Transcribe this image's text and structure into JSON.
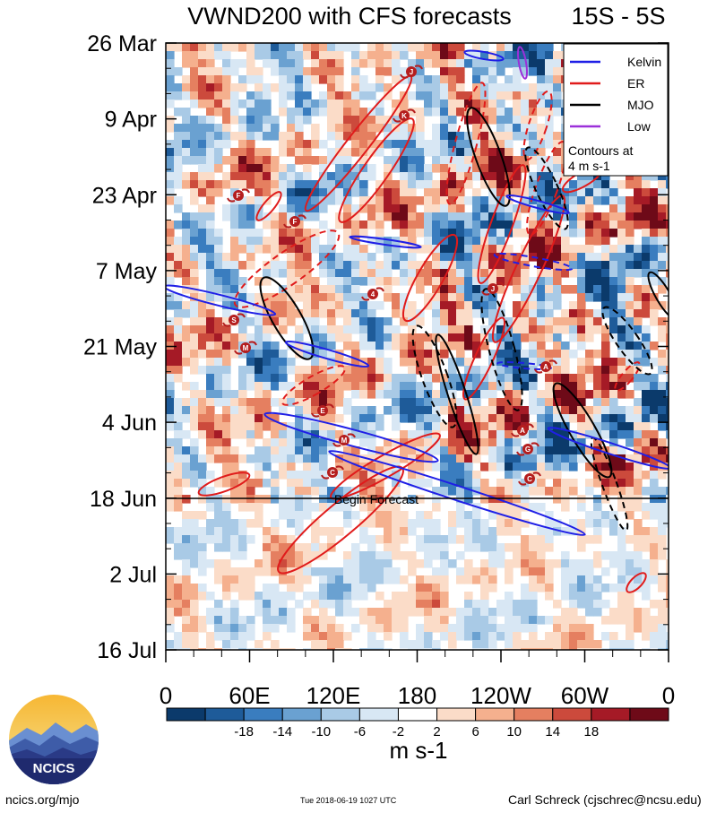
{
  "chart_data": {
    "type": "heatmap",
    "title": "VWND200 with CFS forecasts",
    "region": "15S - 5S",
    "x_ticks": [
      "0",
      "60E",
      "120E",
      "180",
      "120W",
      "60W",
      "0"
    ],
    "y_ticks": [
      "26 Mar",
      "9 Apr",
      "23 Apr",
      "7 May",
      "21 May",
      "4 Jun",
      "18 Jun",
      "2 Jul",
      "16 Jul"
    ],
    "forecast_label": "Begin Forecast",
    "forecast_start": "18 Jun",
    "legend": {
      "entries": [
        {
          "name": "Kelvin",
          "color": "#1f1fe6"
        },
        {
          "name": "ER",
          "color": "#e01b1b"
        },
        {
          "name": "MJO",
          "color": "#000000"
        },
        {
          "name": "Low",
          "color": "#9b30d9"
        }
      ],
      "note_line1": "Contours at",
      "note_line2": "4 m s-1"
    },
    "colorbar": {
      "levels": [
        "-18",
        "-14",
        "-10",
        "-6",
        "-2",
        "2",
        "6",
        "10",
        "14",
        "18"
      ],
      "colors": [
        "#0b3a6b",
        "#1e5b99",
        "#3a7dbf",
        "#6aa1d1",
        "#a9cae6",
        "#d8e7f4",
        "#ffffff",
        "#fbdcc8",
        "#f5b08e",
        "#e57f60",
        "#cc4a3c",
        "#a51a26",
        "#6e0a18"
      ],
      "unit_label": "m s-1"
    },
    "storm_markers": [
      "J",
      "K",
      "F",
      "F",
      "S",
      "M",
      "4",
      "J",
      "A",
      "E",
      "M",
      "A",
      "G",
      "C",
      "C"
    ]
  },
  "logo": {
    "text": "NCICS"
  },
  "footer": {
    "left": "ncics.org/mjo",
    "middle": "Tue 2018-06-19 1027 UTC",
    "right": "Carl Schreck (cjschrec@ncsu.edu)"
  }
}
